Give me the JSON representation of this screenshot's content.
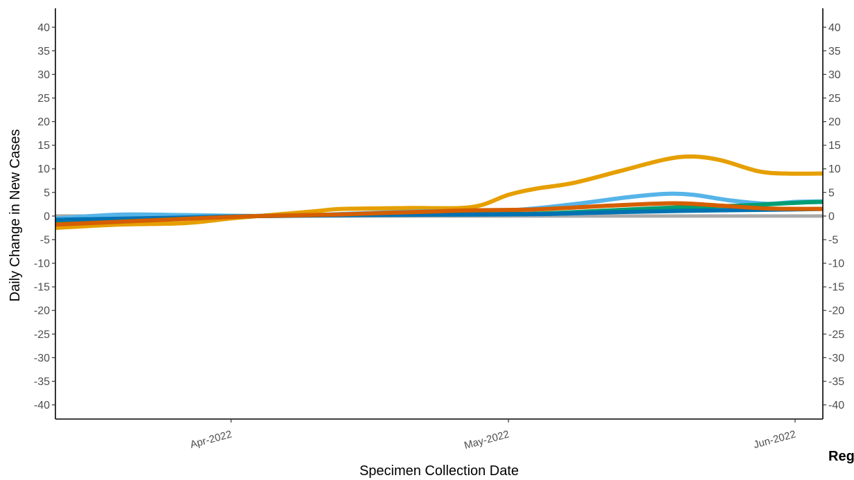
{
  "chart_data": {
    "type": "line",
    "xlabel": "Specimen Collection Date",
    "ylabel": "Daily Change in New Cases",
    "x_range": [
      "2022-03-13",
      "2022-06-04"
    ],
    "ylim": [
      -43,
      44
    ],
    "y_ticks": [
      40,
      35,
      30,
      25,
      20,
      15,
      10,
      5,
      0,
      -5,
      -10,
      -15,
      -20,
      -25,
      -30,
      -35,
      -40
    ],
    "x_ticks": [
      {
        "date": "2022-04-01",
        "label": "Apr-2022"
      },
      {
        "date": "2022-05-01",
        "label": "May-2022"
      },
      {
        "date": "2022-06-01",
        "label": "Jun-2022"
      }
    ],
    "secondary_y_axis": true,
    "grid": false,
    "legend_title_partial": "Reg",
    "reference_line": {
      "value": 0,
      "color": "#AAAAAA"
    },
    "series": [
      {
        "color": "#E69F00",
        "points": [
          [
            "2022-03-13",
            -2.5
          ],
          [
            "2022-03-20",
            -1.8
          ],
          [
            "2022-03-27",
            -1.5
          ],
          [
            "2022-04-01",
            -0.5
          ],
          [
            "2022-04-04",
            0.0
          ],
          [
            "2022-04-10",
            1.0
          ],
          [
            "2022-04-13",
            1.5
          ],
          [
            "2022-04-20",
            1.7
          ],
          [
            "2022-04-27",
            1.9
          ],
          [
            "2022-05-01",
            4.5
          ],
          [
            "2022-05-04",
            5.8
          ],
          [
            "2022-05-08",
            7.0
          ],
          [
            "2022-05-13",
            9.5
          ],
          [
            "2022-05-18",
            12.0
          ],
          [
            "2022-05-21",
            12.6
          ],
          [
            "2022-05-24",
            11.8
          ],
          [
            "2022-05-28",
            9.5
          ],
          [
            "2022-05-31",
            9.0
          ],
          [
            "2022-06-04",
            9.0
          ]
        ]
      },
      {
        "color": "#56B4E9",
        "points": [
          [
            "2022-03-13",
            -0.5
          ],
          [
            "2022-03-20",
            0.3
          ],
          [
            "2022-03-27",
            0.2
          ],
          [
            "2022-04-06",
            0.0
          ],
          [
            "2022-04-14",
            0.5
          ],
          [
            "2022-04-22",
            1.0
          ],
          [
            "2022-05-01",
            1.2
          ],
          [
            "2022-05-08",
            2.5
          ],
          [
            "2022-05-14",
            4.0
          ],
          [
            "2022-05-18",
            4.7
          ],
          [
            "2022-05-21",
            4.5
          ],
          [
            "2022-05-25",
            3.3
          ],
          [
            "2022-05-29",
            2.6
          ],
          [
            "2022-06-01",
            3.0
          ],
          [
            "2022-06-04",
            3.1
          ]
        ]
      },
      {
        "color": "#009E73",
        "points": [
          [
            "2022-03-13",
            -1.2
          ],
          [
            "2022-03-25",
            -0.5
          ],
          [
            "2022-04-04",
            0.0
          ],
          [
            "2022-04-14",
            0.3
          ],
          [
            "2022-04-24",
            0.4
          ],
          [
            "2022-05-04",
            0.5
          ],
          [
            "2022-05-12",
            1.2
          ],
          [
            "2022-05-19",
            1.8
          ],
          [
            "2022-05-26",
            2.2
          ],
          [
            "2022-06-01",
            2.8
          ],
          [
            "2022-06-04",
            3.0
          ]
        ]
      },
      {
        "color": "#0072B2",
        "points": [
          [
            "2022-03-13",
            -0.8
          ],
          [
            "2022-03-25",
            -0.4
          ],
          [
            "2022-04-04",
            0.0
          ],
          [
            "2022-04-14",
            0.2
          ],
          [
            "2022-04-24",
            0.3
          ],
          [
            "2022-05-04",
            0.4
          ],
          [
            "2022-05-12",
            0.8
          ],
          [
            "2022-05-20",
            1.1
          ],
          [
            "2022-05-28",
            1.3
          ],
          [
            "2022-06-04",
            1.5
          ]
        ]
      },
      {
        "color": "#D55E00",
        "points": [
          [
            "2022-03-13",
            -1.8
          ],
          [
            "2022-03-20",
            -1.2
          ],
          [
            "2022-03-27",
            -0.6
          ],
          [
            "2022-04-04",
            0.0
          ],
          [
            "2022-04-12",
            0.3
          ],
          [
            "2022-04-20",
            0.8
          ],
          [
            "2022-04-27",
            1.2
          ],
          [
            "2022-05-04",
            1.4
          ],
          [
            "2022-05-12",
            2.2
          ],
          [
            "2022-05-19",
            2.7
          ],
          [
            "2022-05-24",
            2.2
          ],
          [
            "2022-05-29",
            1.6
          ],
          [
            "2022-06-04",
            1.5
          ]
        ]
      }
    ]
  }
}
